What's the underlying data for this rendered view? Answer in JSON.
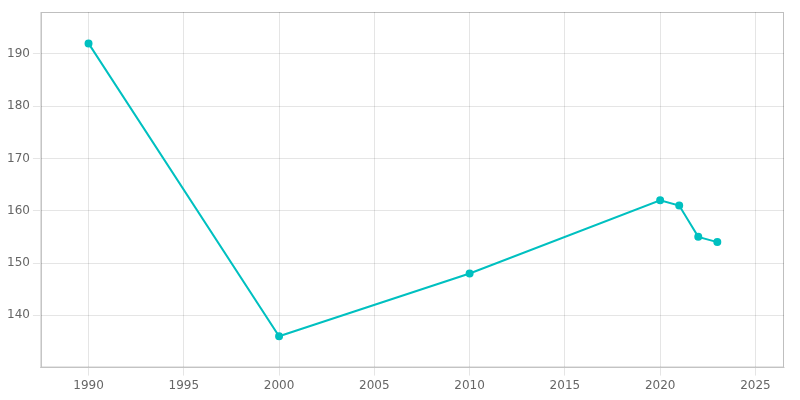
{
  "chart_data": {
    "type": "line",
    "x": [
      1990,
      2000,
      2010,
      2020,
      2021,
      2022,
      2023
    ],
    "values": [
      192,
      136,
      148,
      162,
      161,
      155,
      154
    ],
    "color": "#00c0c0",
    "marker": "circle",
    "xlim": [
      1987.5,
      2026.5
    ],
    "ylim": [
      130,
      198
    ],
    "xticks": [
      1990,
      1995,
      2000,
      2005,
      2010,
      2015,
      2020,
      2025
    ],
    "yticks": [
      140,
      150,
      160,
      170,
      180,
      190
    ],
    "grid": true
  }
}
